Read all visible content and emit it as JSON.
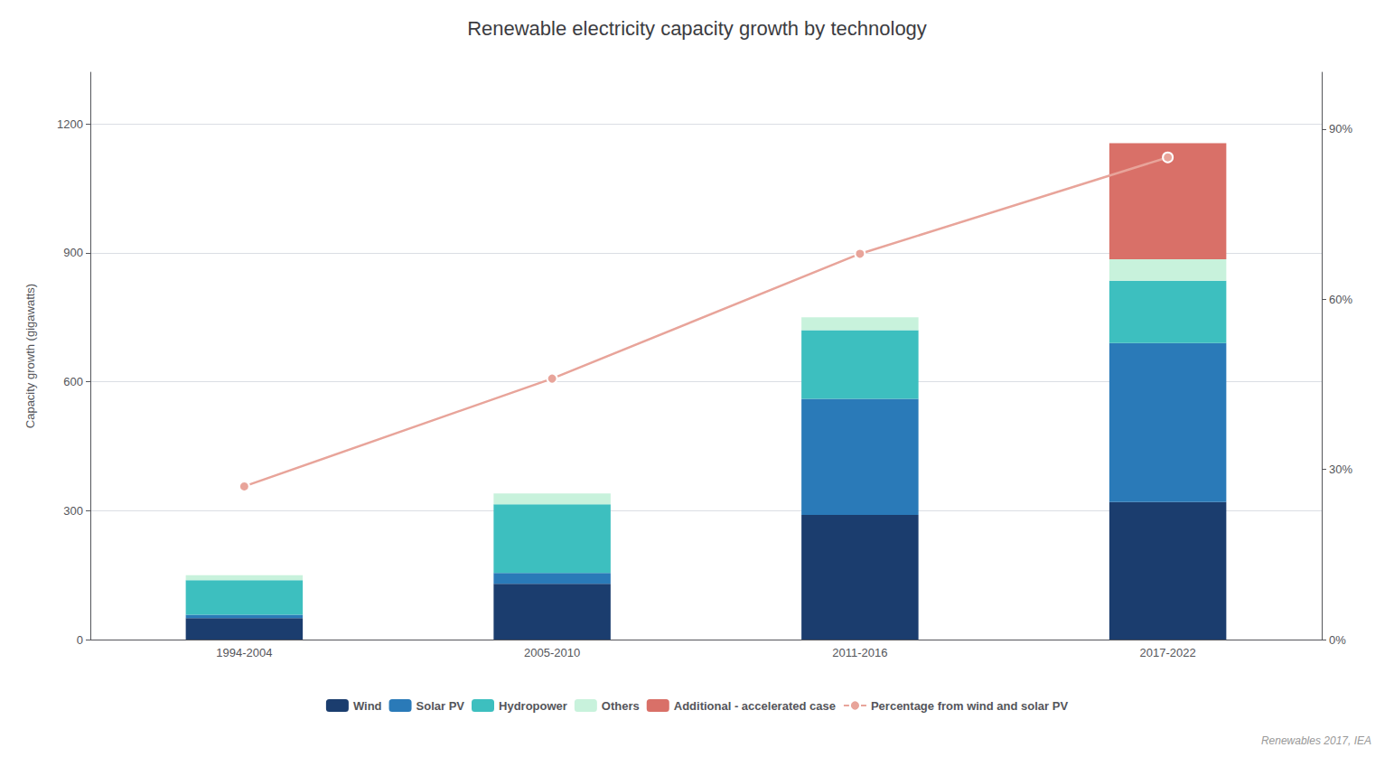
{
  "chart_data": {
    "type": "bar",
    "title": "Renewable electricity capacity growth by technology",
    "categories": [
      "1994-2004",
      "2005-2010",
      "2011-2016",
      "2017-2022"
    ],
    "stacked": true,
    "series": [
      {
        "name": "Wind",
        "color": "#1b3d6e",
        "values": [
          50,
          130,
          290,
          320
        ]
      },
      {
        "name": "Solar PV",
        "color": "#2a7ab8",
        "values": [
          8,
          25,
          270,
          370
        ]
      },
      {
        "name": "Hydropower",
        "color": "#3dbfbf",
        "values": [
          80,
          160,
          160,
          145
        ]
      },
      {
        "name": "Others",
        "color": "#c8f2dc",
        "values": [
          12,
          25,
          30,
          50
        ]
      },
      {
        "name": "Additional - accelerated case",
        "color": "#d97068",
        "values": [
          0,
          0,
          0,
          270
        ]
      },
      {
        "name": "Percentage from wind and solar PV",
        "type": "line",
        "axis": "y2",
        "color": "#e8a49a",
        "marker": "circle",
        "values": [
          27,
          46,
          68,
          85
        ]
      }
    ],
    "ylabel": "Capacity growth (gigawatts)",
    "ylim": [
      0,
      1320
    ],
    "yticks": [
      0,
      300,
      600,
      900,
      1200
    ],
    "y2lim": [
      0,
      100
    ],
    "y2ticks": [
      {
        "value": 0,
        "label": "0%"
      },
      {
        "value": 30,
        "label": "30%"
      },
      {
        "value": 60,
        "label": "60%"
      },
      {
        "value": 90,
        "label": "90%"
      }
    ],
    "grid": true,
    "legend": "bottom",
    "annotations": [
      "Renewables 2017, IEA"
    ]
  }
}
